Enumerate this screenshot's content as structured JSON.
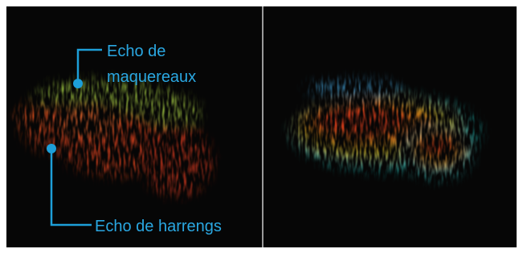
{
  "annotations": {
    "mackerel": {
      "lines": [
        "Echo de",
        "maquereaux"
      ]
    },
    "herring": {
      "label": "Echo de harrengs"
    }
  }
}
